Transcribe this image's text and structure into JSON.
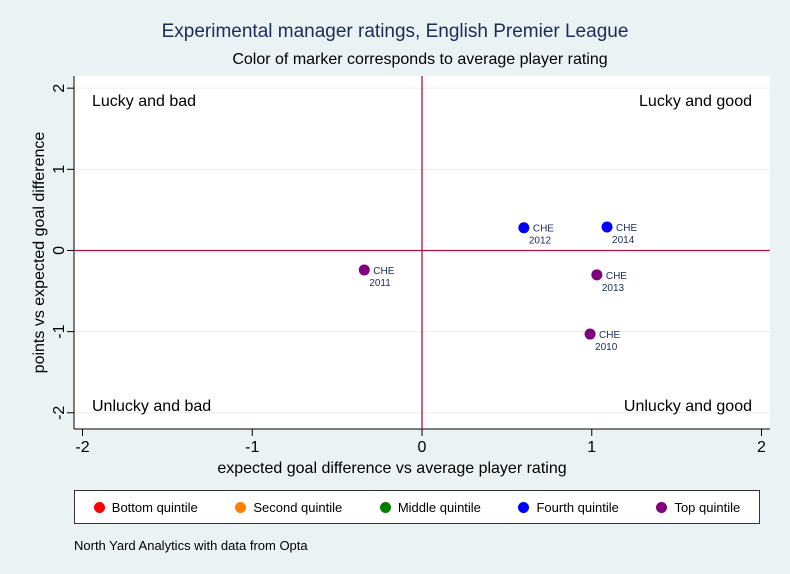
{
  "title": "Experimental manager ratings, English Premier League",
  "subtitle": "Color of marker corresponds to average player rating",
  "source": "North Yard Analytics with data from Opta",
  "colors": {
    "plot_background": "#ffffff",
    "outer_background": "#eaf2f3",
    "reference_line": "#b01048",
    "grid": "#e6eef0",
    "label_text": "#1a2c5a"
  },
  "chart_data": {
    "type": "scatter",
    "title": "Experimental manager ratings, English Premier League",
    "subtitle": "Color of marker corresponds to average player rating",
    "xlabel": "expected goal difference vs average player rating",
    "ylabel": "points vs expected goal difference",
    "xlim": [
      -2.05,
      2.05
    ],
    "ylim": [
      -2.2,
      2.15
    ],
    "xticks": [
      -2,
      -1,
      0,
      1,
      2
    ],
    "yticks": [
      -2,
      -1,
      0,
      1,
      2
    ],
    "xtick_labels": [
      "-2",
      "-1",
      "0",
      "1",
      "2"
    ],
    "ytick_labels": [
      "-2",
      "-1",
      "0",
      "1",
      "2"
    ],
    "reference_lines": {
      "x": 0,
      "y": 0
    },
    "quadrant_labels": {
      "top_left": "Lucky and bad",
      "top_right": "Lucky and good",
      "bottom_left": "Unlucky and bad",
      "bottom_right": "Unlucky and good"
    },
    "legend": [
      {
        "label": "Bottom quintile",
        "color": "#ff0000"
      },
      {
        "label": "Second quintile",
        "color": "#ff8000"
      },
      {
        "label": "Middle quintile",
        "color": "#008000"
      },
      {
        "label": "Fourth quintile",
        "color": "#0000ff"
      },
      {
        "label": "Top quintile",
        "color": "#800080"
      }
    ],
    "points": [
      {
        "team": "CHE",
        "season": "2010",
        "x": 0.99,
        "y": -1.03,
        "quintile": "Top quintile",
        "color": "#800080"
      },
      {
        "team": "CHE",
        "season": "2011",
        "x": -0.34,
        "y": -0.24,
        "quintile": "Top quintile",
        "color": "#800080"
      },
      {
        "team": "CHE",
        "season": "2012",
        "x": 0.6,
        "y": 0.28,
        "quintile": "Fourth quintile",
        "color": "#0000ff"
      },
      {
        "team": "CHE",
        "season": "2013",
        "x": 1.03,
        "y": -0.3,
        "quintile": "Top quintile",
        "color": "#800080"
      },
      {
        "team": "CHE",
        "season": "2014",
        "x": 1.09,
        "y": 0.29,
        "quintile": "Fourth quintile",
        "color": "#0000ff"
      }
    ]
  }
}
